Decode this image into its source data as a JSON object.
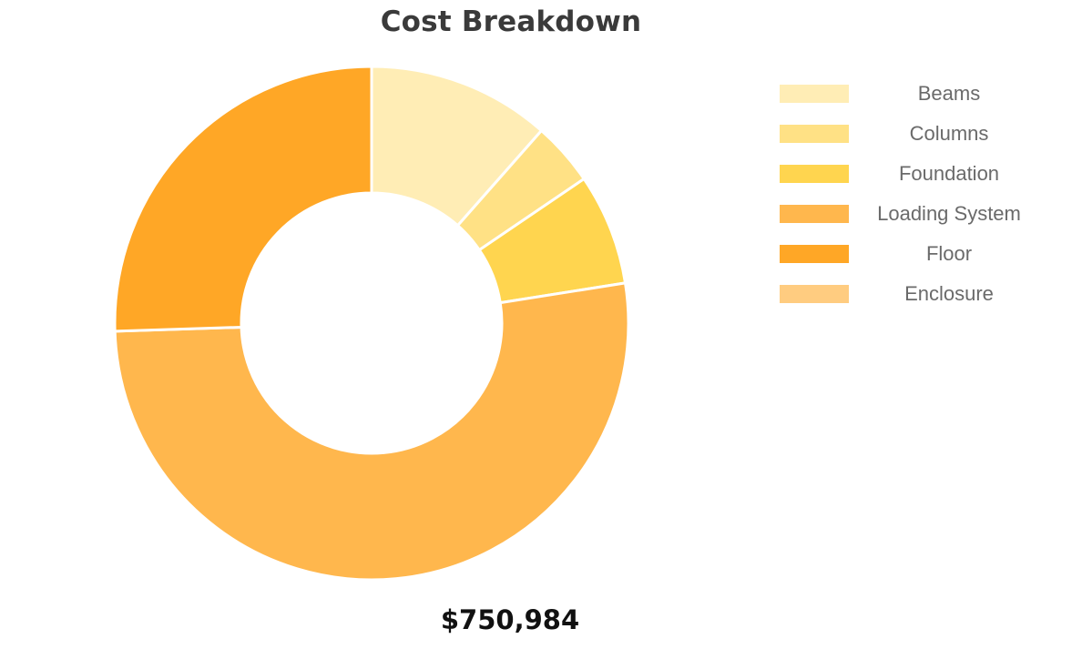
{
  "chart_data": {
    "type": "pie",
    "title": "Cost Breakdown",
    "categories": [
      "Beams",
      "Columns",
      "Foundation",
      "Loading System",
      "Floor",
      "Enclosure"
    ],
    "values": [
      11.5,
      4.0,
      7.0,
      52.0,
      25.5,
      0
    ],
    "colors": [
      "#FFEDB5",
      "#FFE185",
      "#FFD54F",
      "#FFB74D",
      "#FFA726",
      "#FFCC80"
    ],
    "legend_position": "right",
    "total_label": "$750,984"
  }
}
